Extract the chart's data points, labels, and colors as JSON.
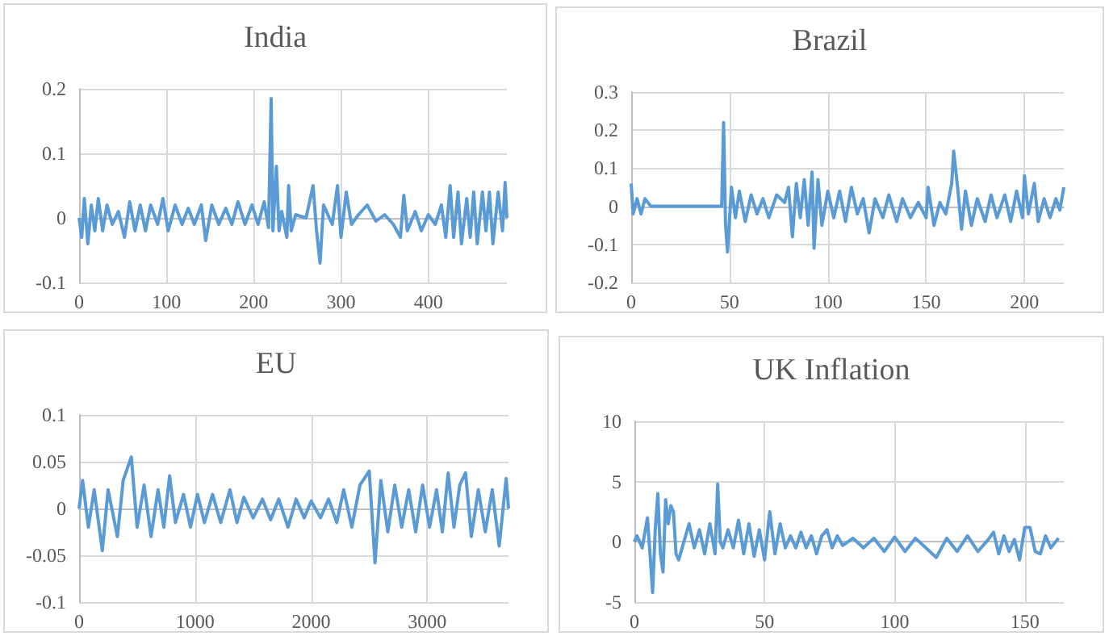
{
  "chart_data": [
    {
      "type": "line",
      "title": "India",
      "color": "#5b9bd5",
      "xlim": [
        0,
        490
      ],
      "xticks": [
        0,
        100,
        200,
        300,
        400
      ],
      "ylim": [
        -0.1,
        0.2
      ],
      "yticks": [
        -0.1,
        0,
        0.1,
        0.2
      ],
      "grid": true,
      "marker": "none",
      "x": [
        0,
        3,
        6,
        10,
        14,
        18,
        22,
        27,
        32,
        38,
        45,
        52,
        58,
        64,
        70,
        76,
        82,
        90,
        96,
        102,
        110,
        118,
        125,
        132,
        140,
        145,
        152,
        160,
        168,
        175,
        182,
        190,
        198,
        205,
        212,
        217,
        220,
        222,
        226,
        229,
        232,
        238,
        240,
        243,
        248,
        260,
        268,
        272,
        276,
        280,
        290,
        296,
        300,
        306,
        312,
        320,
        330,
        340,
        350,
        360,
        368,
        372,
        376,
        385,
        392,
        400,
        408,
        415,
        420,
        425,
        429,
        434,
        438,
        444,
        448,
        452,
        456,
        462,
        466,
        470,
        474,
        480,
        485,
        488,
        490
      ],
      "values": [
        0,
        -0.03,
        0.03,
        -0.04,
        0.02,
        -0.02,
        0.03,
        -0.02,
        0.02,
        -0.01,
        0.01,
        -0.03,
        0.025,
        -0.02,
        0.02,
        -0.02,
        0.02,
        -0.01,
        0.03,
        -0.02,
        0.02,
        -0.01,
        0.015,
        -0.01,
        0.02,
        -0.035,
        0.02,
        -0.01,
        0.015,
        -0.01,
        0.025,
        -0.01,
        0.02,
        -0.01,
        0.025,
        -0.015,
        0.185,
        -0.02,
        0.08,
        -0.02,
        0.01,
        -0.03,
        0.05,
        -0.02,
        0.005,
        0,
        0.05,
        -0.02,
        -0.07,
        0.02,
        -0.01,
        0.05,
        -0.03,
        0.04,
        -0.01,
        0.005,
        0.02,
        -0.005,
        0.005,
        -0.01,
        -0.03,
        0.035,
        -0.02,
        0.01,
        -0.02,
        0.005,
        -0.01,
        0.02,
        -0.03,
        0.05,
        -0.03,
        0.04,
        -0.04,
        0.03,
        -0.03,
        0.04,
        -0.04,
        0.04,
        -0.02,
        0.04,
        -0.04,
        0.04,
        -0.02,
        0.055,
        0
      ]
    },
    {
      "type": "line",
      "title": "Brazil",
      "color": "#5b9bd5",
      "xlim": [
        0,
        220
      ],
      "xticks": [
        0,
        50,
        100,
        150,
        200
      ],
      "ylim": [
        -0.2,
        0.3
      ],
      "yticks": [
        -0.2,
        -0.1,
        0,
        0.1,
        0.2,
        0.3
      ],
      "grid": true,
      "marker": "none",
      "x": [
        0,
        1,
        3,
        5,
        7,
        10,
        46,
        47,
        48,
        49,
        51,
        53,
        55,
        58,
        61,
        64,
        67,
        70,
        74,
        78,
        80,
        82,
        84,
        86,
        88,
        90,
        92,
        93,
        95,
        97,
        100,
        103,
        106,
        109,
        112,
        115,
        118,
        121,
        124,
        128,
        131,
        135,
        138,
        142,
        146,
        150,
        151,
        154,
        157,
        160,
        163,
        164,
        166,
        168,
        170,
        173,
        176,
        180,
        183,
        186,
        190,
        193,
        196,
        199,
        200,
        202,
        205,
        207,
        210,
        213,
        216,
        218,
        220
      ],
      "values": [
        0.06,
        -0.02,
        0.02,
        -0.02,
        0.02,
        0,
        0,
        0.22,
        -0.05,
        -0.12,
        0.05,
        -0.03,
        0.04,
        -0.04,
        0.03,
        -0.02,
        0.02,
        -0.03,
        0.03,
        0.01,
        0.05,
        -0.08,
        0.06,
        -0.03,
        0.07,
        -0.05,
        0.09,
        -0.11,
        0.07,
        -0.05,
        0.04,
        -0.03,
        0.04,
        -0.04,
        0.05,
        -0.02,
        0.02,
        -0.07,
        0.02,
        -0.03,
        0.03,
        -0.04,
        0.02,
        -0.03,
        0.01,
        -0.03,
        0.05,
        -0.05,
        0.01,
        -0.02,
        0.06,
        0.145,
        0.05,
        -0.06,
        0.04,
        -0.05,
        0.02,
        -0.04,
        0.03,
        -0.03,
        0.03,
        -0.04,
        0.04,
        -0.03,
        0.08,
        -0.02,
        0.06,
        -0.04,
        0.02,
        -0.03,
        0.02,
        -0.01,
        0.05
      ]
    },
    {
      "type": "line",
      "title": "EU",
      "color": "#5b9bd5",
      "xlim": [
        0,
        3700
      ],
      "xticks": [
        0,
        1000,
        2000,
        3000
      ],
      "ylim": [
        -0.1,
        0.1
      ],
      "yticks": [
        -0.1,
        -0.05,
        0,
        0.05,
        0.1
      ],
      "grid": true,
      "marker": "none",
      "x": [
        0,
        30,
        80,
        130,
        200,
        250,
        330,
        380,
        450,
        500,
        560,
        620,
        680,
        730,
        780,
        830,
        900,
        960,
        1020,
        1080,
        1150,
        1220,
        1300,
        1360,
        1420,
        1500,
        1580,
        1650,
        1720,
        1800,
        1870,
        1940,
        2000,
        2080,
        2150,
        2220,
        2280,
        2350,
        2420,
        2500,
        2550,
        2600,
        2660,
        2720,
        2780,
        2840,
        2900,
        2960,
        3020,
        3080,
        3130,
        3180,
        3230,
        3280,
        3330,
        3380,
        3440,
        3500,
        3560,
        3620,
        3680,
        3700
      ],
      "values": [
        0,
        0.03,
        -0.02,
        0.02,
        -0.045,
        0.02,
        -0.03,
        0.03,
        0.055,
        -0.02,
        0.025,
        -0.03,
        0.02,
        -0.02,
        0.035,
        -0.015,
        0.015,
        -0.02,
        0.015,
        -0.015,
        0.015,
        -0.015,
        0.02,
        -0.015,
        0.012,
        -0.01,
        0.01,
        -0.012,
        0.01,
        -0.02,
        0.01,
        -0.01,
        0.008,
        -0.01,
        0.01,
        -0.015,
        0.02,
        -0.02,
        0.025,
        0.04,
        -0.058,
        0.03,
        -0.025,
        0.025,
        -0.02,
        0.02,
        -0.025,
        0.025,
        -0.02,
        0.02,
        -0.025,
        0.038,
        -0.02,
        0.025,
        0.038,
        -0.03,
        0.02,
        -0.025,
        0.02,
        -0.04,
        0.032,
        0
      ]
    },
    {
      "type": "line",
      "title": "UK Inflation",
      "color": "#5b9bd5",
      "xlim": [
        0,
        165
      ],
      "xticks": [
        0,
        50,
        100,
        150
      ],
      "ylim": [
        -5,
        10
      ],
      "yticks": [
        -5,
        0,
        5,
        10
      ],
      "grid": true,
      "marker": "none",
      "x": [
        0,
        1,
        3,
        5,
        6,
        7,
        8,
        9,
        10,
        11,
        12,
        13,
        14,
        15,
        16,
        17,
        19,
        21,
        23,
        25,
        27,
        29,
        31,
        32,
        33,
        34,
        36,
        38,
        40,
        42,
        44,
        46,
        48,
        50,
        52,
        54,
        56,
        58,
        60,
        62,
        64,
        66,
        68,
        70,
        72,
        74,
        76,
        78,
        80,
        84,
        88,
        92,
        96,
        100,
        104,
        108,
        112,
        116,
        120,
        124,
        128,
        132,
        136,
        138,
        140,
        142,
        144,
        146,
        148,
        150,
        152,
        154,
        156,
        158,
        160,
        163
      ],
      "values": [
        0,
        0.5,
        -0.5,
        2,
        -1,
        -4.2,
        1,
        4,
        -1,
        -2.5,
        3.5,
        1.5,
        3,
        2.5,
        -1,
        -1.5,
        0,
        1.5,
        -0.5,
        1,
        -1,
        1.5,
        -1,
        4.8,
        0,
        -0.5,
        1,
        -0.5,
        1.8,
        -1,
        1.5,
        -1.2,
        1,
        -1.5,
        2.5,
        -1,
        1.5,
        -0.5,
        0.5,
        -0.5,
        0.8,
        -0.5,
        0.5,
        -1,
        0.5,
        1,
        -0.5,
        0.5,
        -0.3,
        0.3,
        -0.5,
        0.3,
        -0.8,
        0.4,
        -0.8,
        0.3,
        -0.5,
        -1.3,
        0.3,
        -0.8,
        0.5,
        -0.8,
        0.2,
        0.8,
        -1,
        0.5,
        -0.8,
        0.2,
        -1.5,
        1.2,
        1.2,
        -0.8,
        -1,
        0.5,
        -0.5,
        0.3
      ]
    }
  ]
}
